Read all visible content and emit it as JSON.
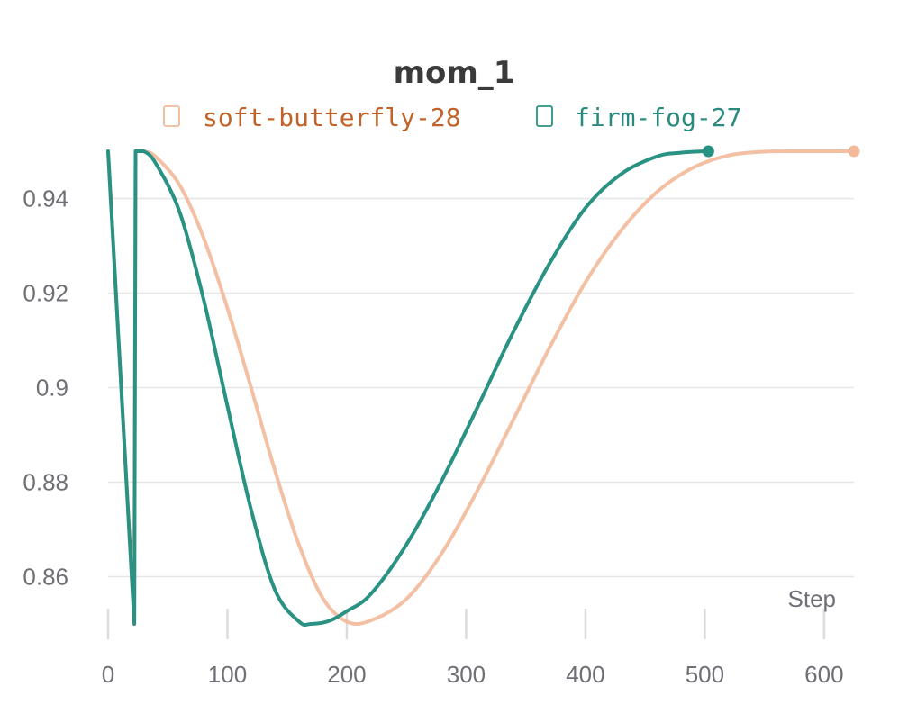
{
  "chart_data": {
    "type": "line",
    "title": "mom_1",
    "xlabel": "Step",
    "ylabel": "",
    "xlim": [
      0,
      625
    ],
    "ylim": [
      0.85,
      0.95
    ],
    "xticks": [
      0,
      100,
      200,
      300,
      400,
      500,
      600
    ],
    "yticks": [
      0.86,
      0.88,
      0.9,
      0.92,
      0.94
    ],
    "xtick_labels": [
      "0",
      "100",
      "200",
      "300",
      "400",
      "500",
      "600"
    ],
    "ytick_labels": [
      "0.86",
      "0.88",
      "0.9",
      "0.92",
      "0.94"
    ],
    "grid": true,
    "legend_position": "top",
    "series": [
      {
        "name": "soft-butterfly-28",
        "color": "#f2b99a",
        "label_color": "#c0622a",
        "width": 4,
        "opacity": 0.9,
        "x": [
          0,
          22,
          23,
          30,
          40,
          60,
          80,
          100,
          120,
          140,
          160,
          180,
          200,
          220,
          250,
          280,
          310,
          340,
          370,
          400,
          430,
          460,
          490,
          520,
          550,
          580,
          610,
          625
        ],
        "y": [
          0.95,
          0.85,
          0.95,
          0.95,
          0.9488,
          0.9428,
          0.9317,
          0.9168,
          0.8998,
          0.8823,
          0.8667,
          0.8554,
          0.8505,
          0.8507,
          0.8553,
          0.8651,
          0.8785,
          0.8934,
          0.9085,
          0.9223,
          0.9333,
          0.9414,
          0.9465,
          0.9491,
          0.9499,
          0.95,
          0.95,
          0.95
        ]
      },
      {
        "name": "firm-fog-27",
        "color": "#2a9283",
        "label_color": "#2a8a7e",
        "width": 4,
        "opacity": 1,
        "x": [
          0,
          22,
          23,
          30,
          40,
          60,
          80,
          100,
          120,
          140,
          160,
          170,
          185,
          200,
          220,
          250,
          280,
          310,
          340,
          370,
          400,
          430,
          460,
          480,
          500,
          503
        ],
        "y": [
          0.95,
          0.85,
          0.95,
          0.95,
          0.9474,
          0.9371,
          0.9187,
          0.8961,
          0.874,
          0.8571,
          0.8505,
          0.85,
          0.8506,
          0.8527,
          0.8563,
          0.8668,
          0.8805,
          0.8961,
          0.912,
          0.9263,
          0.938,
          0.9452,
          0.9489,
          0.9497,
          0.95,
          0.95
        ]
      }
    ]
  }
}
